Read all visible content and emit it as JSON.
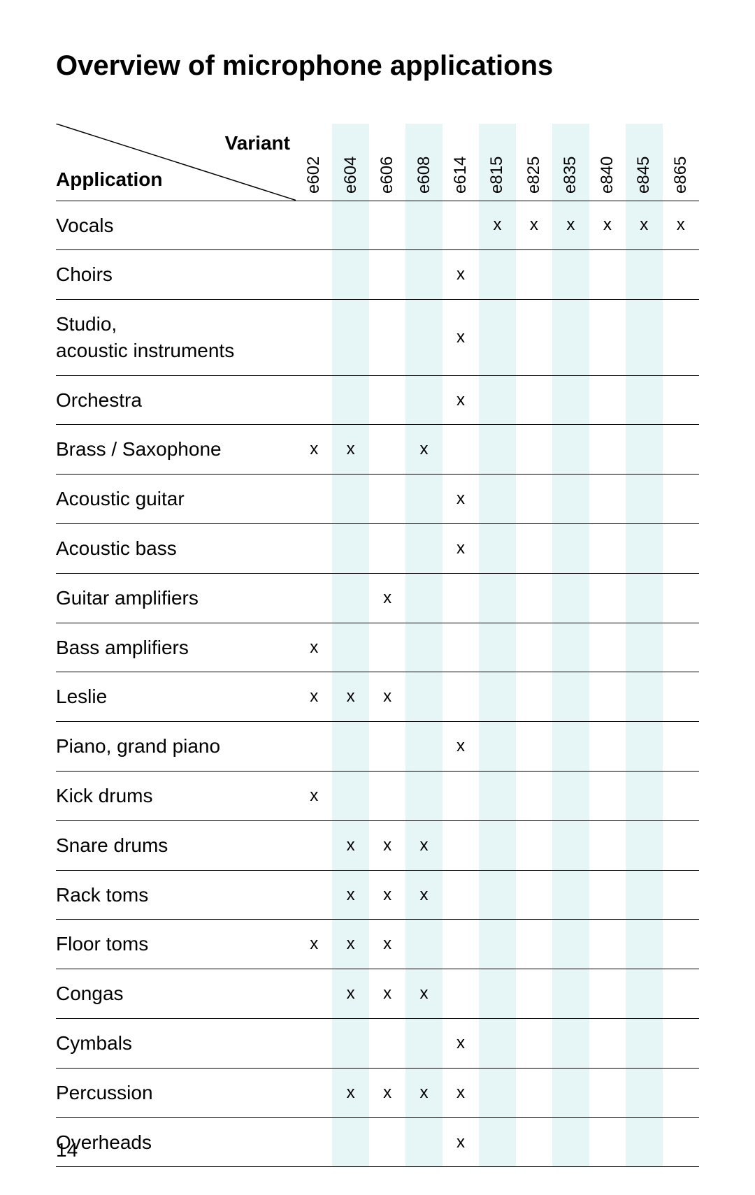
{
  "title": "Overview of microphone applications",
  "corner": {
    "variant_label": "Variant",
    "application_label": "Application"
  },
  "mark_glyph": "x",
  "variants": [
    "e602",
    "e604",
    "e606",
    "e608",
    "e614",
    "e815",
    "e825",
    "e835",
    "e840",
    "e845",
    "e865"
  ],
  "tint_color": "#e6f5f5",
  "rows": [
    {
      "label": "Vocals",
      "marks": [
        0,
        0,
        0,
        0,
        0,
        1,
        1,
        1,
        1,
        1,
        1
      ]
    },
    {
      "label": "Choirs",
      "marks": [
        0,
        0,
        0,
        0,
        1,
        0,
        0,
        0,
        0,
        0,
        0
      ]
    },
    {
      "label": "Studio,\nacoustic instruments",
      "marks": [
        0,
        0,
        0,
        0,
        1,
        0,
        0,
        0,
        0,
        0,
        0
      ]
    },
    {
      "label": "Orchestra",
      "marks": [
        0,
        0,
        0,
        0,
        1,
        0,
        0,
        0,
        0,
        0,
        0
      ]
    },
    {
      "label": "Brass / Saxophone",
      "marks": [
        1,
        1,
        0,
        1,
        0,
        0,
        0,
        0,
        0,
        0,
        0
      ]
    },
    {
      "label": "Acoustic guitar",
      "marks": [
        0,
        0,
        0,
        0,
        1,
        0,
        0,
        0,
        0,
        0,
        0
      ]
    },
    {
      "label": "Acoustic bass",
      "marks": [
        0,
        0,
        0,
        0,
        1,
        0,
        0,
        0,
        0,
        0,
        0
      ]
    },
    {
      "label": "Guitar amplifiers",
      "marks": [
        0,
        0,
        1,
        0,
        0,
        0,
        0,
        0,
        0,
        0,
        0
      ]
    },
    {
      "label": "Bass amplifiers",
      "marks": [
        1,
        0,
        0,
        0,
        0,
        0,
        0,
        0,
        0,
        0,
        0
      ]
    },
    {
      "label": "Leslie",
      "marks": [
        1,
        1,
        1,
        0,
        0,
        0,
        0,
        0,
        0,
        0,
        0
      ]
    },
    {
      "label": "Piano, grand piano",
      "marks": [
        0,
        0,
        0,
        0,
        1,
        0,
        0,
        0,
        0,
        0,
        0
      ]
    },
    {
      "label": "Kick drums",
      "marks": [
        1,
        0,
        0,
        0,
        0,
        0,
        0,
        0,
        0,
        0,
        0
      ]
    },
    {
      "label": "Snare drums",
      "marks": [
        0,
        1,
        1,
        1,
        0,
        0,
        0,
        0,
        0,
        0,
        0
      ]
    },
    {
      "label": "Rack toms",
      "marks": [
        0,
        1,
        1,
        1,
        0,
        0,
        0,
        0,
        0,
        0,
        0
      ]
    },
    {
      "label": "Floor toms",
      "marks": [
        1,
        1,
        1,
        0,
        0,
        0,
        0,
        0,
        0,
        0,
        0
      ]
    },
    {
      "label": "Congas",
      "marks": [
        0,
        1,
        1,
        1,
        0,
        0,
        0,
        0,
        0,
        0,
        0
      ]
    },
    {
      "label": "Cymbals",
      "marks": [
        0,
        0,
        0,
        0,
        1,
        0,
        0,
        0,
        0,
        0,
        0
      ]
    },
    {
      "label": "Percussion",
      "marks": [
        0,
        1,
        1,
        1,
        1,
        0,
        0,
        0,
        0,
        0,
        0
      ]
    },
    {
      "label": "Overheads",
      "marks": [
        0,
        0,
        0,
        0,
        1,
        0,
        0,
        0,
        0,
        0,
        0
      ]
    }
  ],
  "page_number": "14"
}
